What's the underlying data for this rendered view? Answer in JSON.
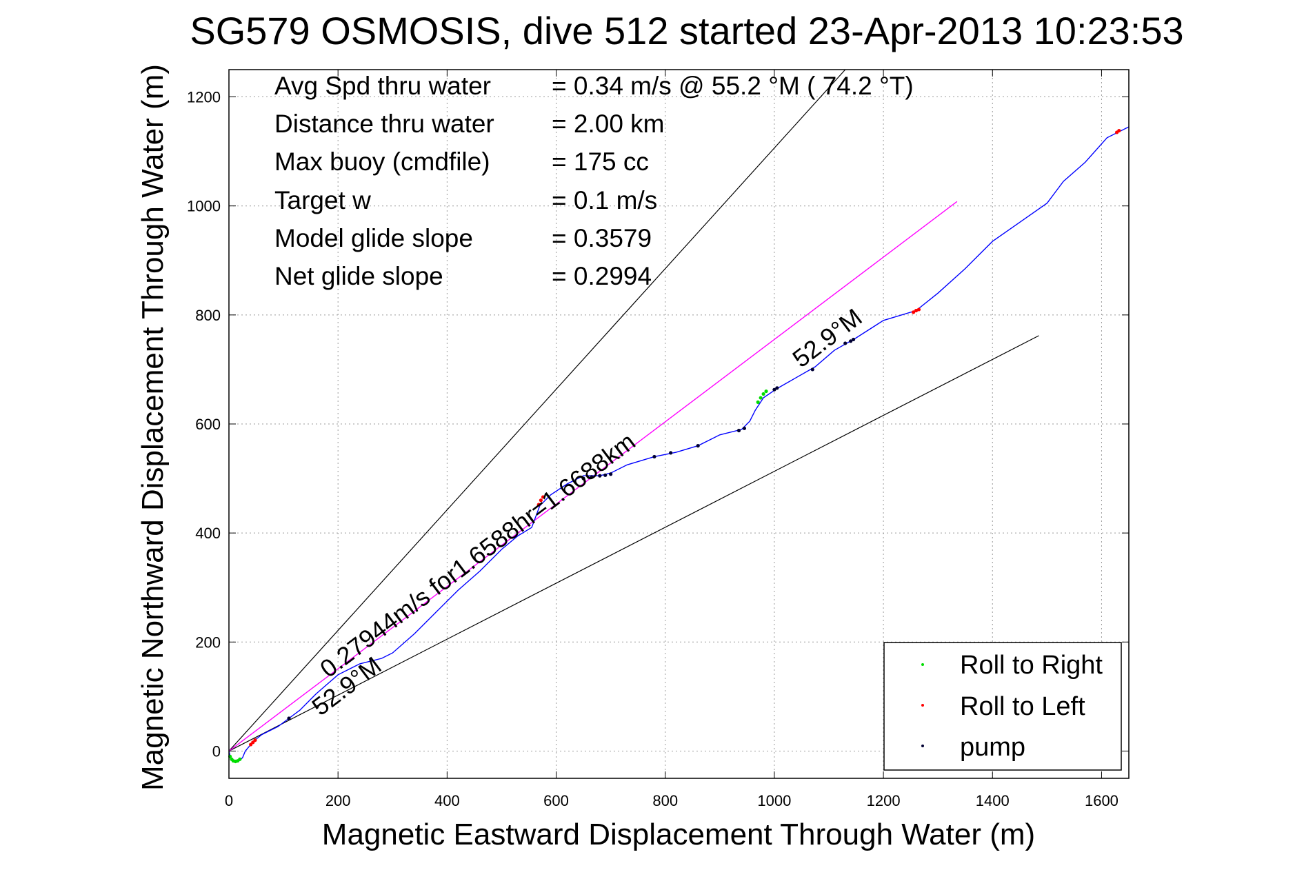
{
  "chart_data": {
    "type": "line",
    "title": "SG579 OSMOSIS, dive 512 started 23-Apr-2013 10:23:53",
    "xlabel": "Magnetic Eastward Displacement Through Water (m)",
    "ylabel": "Magnetic Northward Displacement Through Water (m)",
    "xlim": [
      0,
      1650
    ],
    "ylim": [
      -50,
      1250
    ],
    "xticks": [
      0,
      200,
      400,
      600,
      800,
      1000,
      1200,
      1400,
      1600
    ],
    "yticks": [
      0,
      200,
      400,
      600,
      800,
      1000,
      1200
    ],
    "grid": true,
    "legend_position": "bottom-right",
    "info_lines": [
      {
        "label": "Avg Spd thru water",
        "value": "=  0.34 m/s @  55.2 °M ( 74.2 °T)"
      },
      {
        "label": "Distance thru water",
        "value": "=  2.00 km"
      },
      {
        "label": "Max buoy (cmdfile)",
        "value": "= 175 cc"
      },
      {
        "label": "Target w",
        "value": "= 0.1 m/s"
      },
      {
        "label": "Model glide slope",
        "value": "= 0.3579"
      },
      {
        "label": "Net glide slope",
        "value": "= 0.2994"
      }
    ],
    "annotations": {
      "speed_label": "0.27944m/s for1.6588hr=1.6688km",
      "heading_label_lower": "52.9°M",
      "heading_label_upper": "52.9°M"
    },
    "colors": {
      "track": "#0000ff",
      "mean_line": "#ff00ff",
      "envelope": "#000000",
      "roll_right": "#00dd00",
      "roll_left": "#ff0000",
      "pump": "#000033"
    },
    "legend": [
      {
        "label": "Roll to Right",
        "color": "#00dd00"
      },
      {
        "label": "Roll to Left",
        "color": "#ff0000"
      },
      {
        "label": "pump",
        "color": "#000033"
      }
    ],
    "envelope_lines": [
      {
        "x": [
          0,
          1130
        ],
        "y": [
          0,
          1250
        ]
      },
      {
        "x": [
          0,
          1485
        ],
        "y": [
          0,
          762
        ]
      }
    ],
    "mean_line": {
      "x": [
        0,
        1335
      ],
      "y": [
        0,
        1008
      ]
    },
    "track": {
      "x": [
        0,
        3,
        8,
        15,
        20,
        25,
        30,
        45,
        60,
        90,
        110,
        130,
        160,
        200,
        240,
        280,
        300,
        340,
        380,
        420,
        460,
        500,
        530,
        555,
        570,
        590,
        620,
        650,
        680,
        700,
        730,
        780,
        820,
        860,
        900,
        940,
        955,
        965,
        980,
        1005,
        1040,
        1075,
        1110,
        1150,
        1200,
        1260,
        1300,
        1350,
        1400,
        1450,
        1500,
        1530,
        1570,
        1610,
        1650
      ],
      "y": [
        0,
        -12,
        -18,
        -20,
        -17,
        -12,
        0,
        18,
        30,
        45,
        60,
        75,
        105,
        140,
        160,
        170,
        180,
        215,
        255,
        295,
        330,
        370,
        395,
        410,
        450,
        470,
        490,
        505,
        505,
        510,
        525,
        540,
        548,
        560,
        580,
        590,
        605,
        625,
        648,
        665,
        685,
        705,
        735,
        758,
        790,
        808,
        840,
        885,
        935,
        970,
        1005,
        1045,
        1080,
        1125,
        1145
      ]
    },
    "roll_right_points": {
      "x": [
        2,
        5,
        8,
        12,
        16,
        20,
        970,
        975,
        980,
        985
      ],
      "y": [
        -10,
        -15,
        -18,
        -19,
        -18,
        -15,
        640,
        648,
        655,
        660
      ]
    },
    "roll_left_points": {
      "x": [
        40,
        44,
        48,
        568,
        572,
        576,
        1255,
        1260,
        1265,
        1628,
        1632
      ],
      "y": [
        12,
        16,
        20,
        452,
        460,
        466,
        805,
        808,
        810,
        1135,
        1138
      ]
    },
    "pump_points": {
      "x": [
        110,
        650,
        665,
        680,
        690,
        700,
        780,
        810,
        860,
        935,
        945,
        1000,
        1005,
        1070,
        1130,
        1140,
        1145
      ],
      "y": [
        60,
        500,
        503,
        505,
        506,
        508,
        540,
        547,
        560,
        588,
        592,
        663,
        666,
        700,
        748,
        752,
        755
      ]
    }
  }
}
